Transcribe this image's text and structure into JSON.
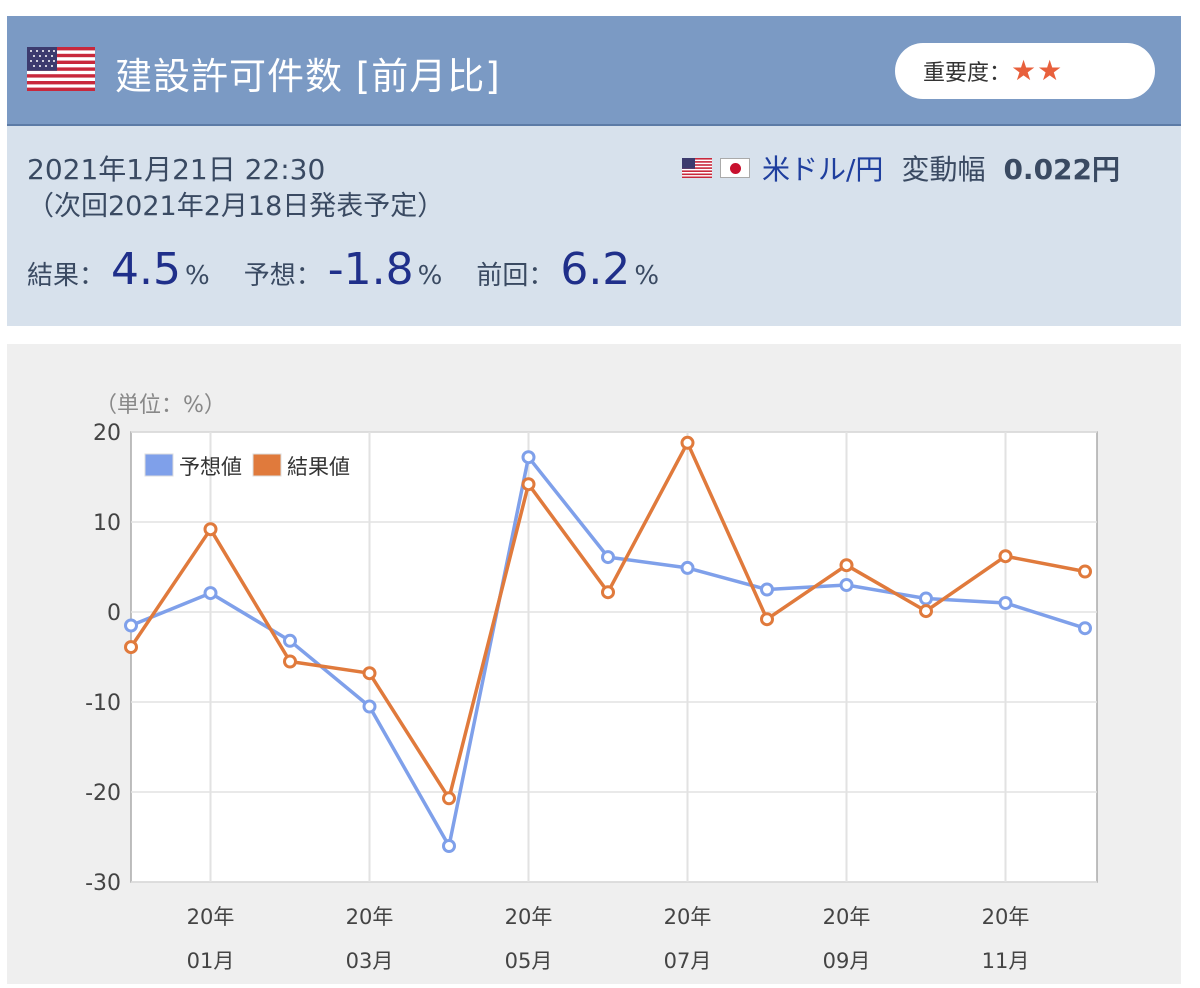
{
  "header": {
    "title": "建設許可件数 [前月比]",
    "importance_label": "重要度：",
    "importance_stars": "★★",
    "flag_icon": "us-flag-icon"
  },
  "info": {
    "datetime": "2021年1月21日 22:30",
    "next_release": "（次回2021年2月18日発表予定）",
    "pair": "米ドル/円",
    "range_label": "変動幅",
    "range_value": "0.022円",
    "result_label": "結果：",
    "result_value": "4.5",
    "forecast_label": "予想：",
    "forecast_value": "-1.8",
    "previous_label": "前回：",
    "previous_value": "6.2",
    "unit": "%"
  },
  "colors": {
    "header_bg": "#7b9ac4",
    "info_bg": "#d7e1ec",
    "forecast_line": "#7fa0ea",
    "result_line": "#e07a3c",
    "value_text": "#1f2f8a"
  },
  "chart_data": {
    "type": "line",
    "unit_label": "（単位：%）",
    "ylim": [
      -30,
      20
    ],
    "yticks": [
      20,
      10,
      0,
      -10,
      -20,
      -30
    ],
    "grid": true,
    "legend_placement": "top-left",
    "x_tick_labels": [
      {
        "index": 1,
        "year": "20年",
        "month": "01月"
      },
      {
        "index": 3,
        "year": "20年",
        "month": "03月"
      },
      {
        "index": 5,
        "year": "20年",
        "month": "05月"
      },
      {
        "index": 7,
        "year": "20年",
        "month": "07月"
      },
      {
        "index": 9,
        "year": "20年",
        "month": "09月"
      },
      {
        "index": 11,
        "year": "20年",
        "month": "11月"
      }
    ],
    "series": [
      {
        "name": "予想値",
        "color": "#7fa0ea",
        "values": [
          -1.5,
          2.1,
          -3.2,
          -10.5,
          -26.0,
          17.2,
          6.1,
          4.9,
          2.5,
          3.0,
          1.5,
          1.0,
          -1.8
        ]
      },
      {
        "name": "結果値",
        "color": "#e07a3c",
        "values": [
          -3.9,
          9.2,
          -5.5,
          -6.8,
          -20.7,
          14.2,
          2.2,
          18.8,
          -0.8,
          5.2,
          0.1,
          6.2,
          4.5
        ]
      }
    ]
  }
}
